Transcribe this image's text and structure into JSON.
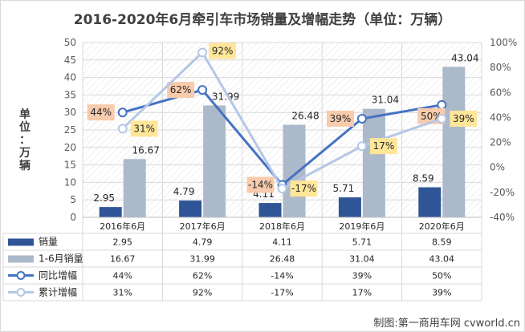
{
  "chart_data": {
    "type": "bar",
    "title": "2016-2020年6月牵引车市场销量及增幅走势（单位：万辆）",
    "ylabel": "单位：万辆",
    "categories": [
      "2016年6月",
      "2017年6月",
      "2018年6月",
      "2019年6月",
      "2020年6月"
    ],
    "ylim": [
      0,
      50
    ],
    "y2lim": [
      -40,
      100
    ],
    "yticks": [
      "0",
      "5",
      "10",
      "15",
      "20",
      "25",
      "30",
      "35",
      "40",
      "45",
      "50"
    ],
    "y2ticks": [
      "-40%",
      "-20%",
      "0%",
      "20%",
      "40%",
      "60%",
      "80%",
      "100%"
    ],
    "series": [
      {
        "name": "销量",
        "kind": "bar",
        "color": "#2f5597",
        "values": [
          2.95,
          4.79,
          4.11,
          5.71,
          8.59
        ],
        "labels": [
          "2.95",
          "4.79",
          "4.11",
          "5.71",
          "8.59"
        ]
      },
      {
        "name": "1-6月销量",
        "kind": "bar",
        "color": "#acb9ca",
        "values": [
          16.67,
          31.99,
          26.48,
          31.04,
          43.04
        ],
        "labels": [
          "16.67",
          "31.99",
          "26.48",
          "31.04",
          "43.04"
        ]
      },
      {
        "name": "同比增幅",
        "kind": "line",
        "axis": "right",
        "color": "#4472c4",
        "values": [
          44,
          62,
          -14,
          39,
          50
        ],
        "labels": [
          "44%",
          "62%",
          "-14%",
          "39%",
          "50%"
        ],
        "label_bg": "#f8cbad"
      },
      {
        "name": "累计增幅",
        "kind": "line",
        "axis": "right",
        "color": "#b4c7e7",
        "values": [
          31,
          92,
          -17,
          17,
          39
        ],
        "labels": [
          "31%",
          "92%",
          "-17%",
          "17%",
          "39%"
        ],
        "label_bg": "#ffe699"
      }
    ],
    "table": {
      "rows": [
        [
          "2.95",
          "4.79",
          "4.11",
          "5.71",
          "8.59"
        ],
        [
          "16.67",
          "31.99",
          "26.48",
          "31.04",
          "43.04"
        ],
        [
          "44%",
          "62%",
          "-14%",
          "39%",
          "50%"
        ],
        [
          "31%",
          "92%",
          "-17%",
          "17%",
          "39%"
        ]
      ]
    },
    "grid": true,
    "legend": "data-table"
  },
  "credit": "制图:第一商用车网 cvworld.cn"
}
